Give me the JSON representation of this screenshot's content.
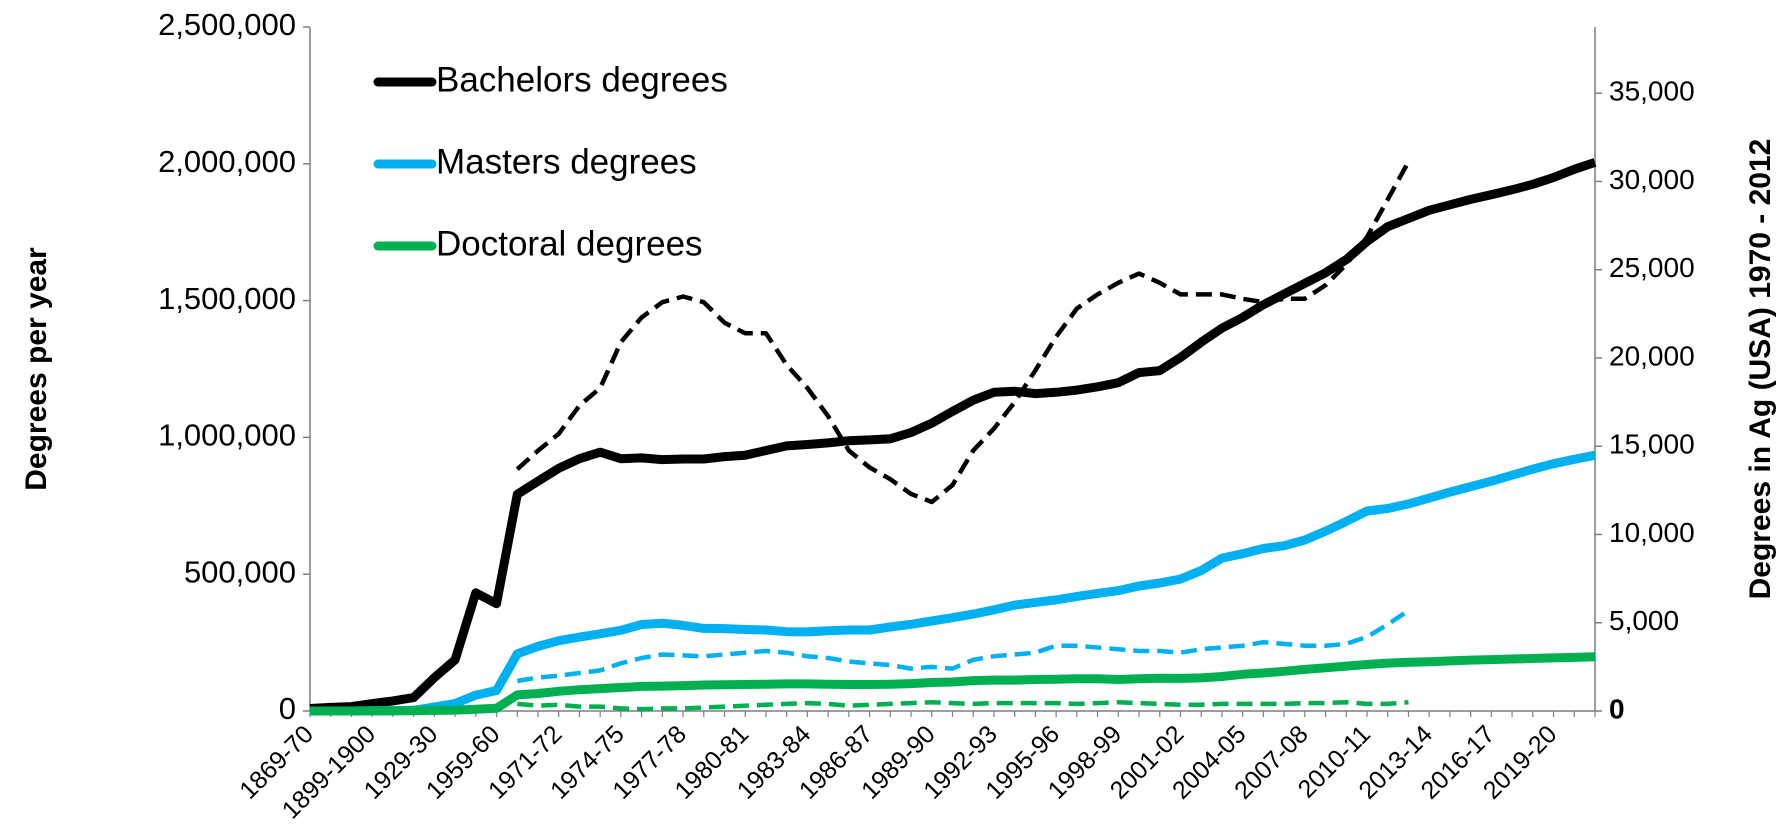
{
  "chart_data": {
    "type": "line",
    "ylabel": "Degrees per year",
    "y2label": "Degrees in Ag (USA) 1970 - 2012",
    "categories": [
      "1869-70",
      null,
      null,
      "1899-1900",
      null,
      null,
      "1929-30",
      null,
      null,
      "1959-60",
      null,
      null,
      "1971-72",
      null,
      null,
      "1974-75",
      null,
      null,
      "1977-78",
      null,
      null,
      "1980-81",
      null,
      null,
      "1983-84",
      null,
      null,
      "1986-87",
      null,
      null,
      "1989-90",
      null,
      null,
      "1992-93",
      null,
      null,
      "1995-96",
      null,
      null,
      "1998-99",
      null,
      null,
      "2001-02",
      null,
      null,
      "2004-05",
      null,
      null,
      "2007-08",
      null,
      null,
      "2010-11",
      null,
      null,
      "2013-14",
      null,
      null,
      "2016-17",
      null,
      null,
      "2019-20",
      null,
      null
    ],
    "ylim": [
      0,
      2500000
    ],
    "yticks": [
      0,
      {
        "value": 500000,
        "label": "500,000"
      },
      {
        "value": 1000000,
        "label": "1,000,000"
      },
      {
        "value": 1500000,
        "label": "1,500,000"
      },
      {
        "value": 2000000,
        "label": "2,000,000"
      },
      {
        "value": 2500000,
        "label": "2,500,000"
      }
    ],
    "y2lim": [
      0,
      38750
    ],
    "y2ticks": [
      0,
      {
        "value": 5000,
        "label": "5,000"
      },
      {
        "value": 10000,
        "label": "10,000"
      },
      {
        "value": 15000,
        "label": "15,000"
      },
      {
        "value": 20000,
        "label": "20,000"
      },
      {
        "value": 25000,
        "label": "25,000"
      },
      {
        "value": 30000,
        "label": "30,000"
      },
      {
        "value": 35000,
        "label": "35,000"
      }
    ],
    "grid": false,
    "legend": "upper left",
    "series": [
      {
        "name": "Bachelors degrees",
        "color": "#000000",
        "style": "solid",
        "values": [
          9000,
          13000,
          16000,
          27000,
          37000,
          49000,
          122000,
          187000,
          432000,
          392000,
          792000,
          840000,
          887000,
          922000,
          946000,
          922000,
          925000,
          919000,
          921000,
          921000,
          930000,
          935000,
          952000,
          969000,
          974000,
          980000,
          988000,
          991000,
          995000,
          1018000,
          1052000,
          1095000,
          1136000,
          1165000,
          1169000,
          1160000,
          1165000,
          1173000,
          1185000,
          1200000,
          1237000,
          1244000,
          1292000,
          1348000,
          1399000,
          1439000,
          1485000,
          1524000,
          1563000,
          1602000,
          1650000,
          1716000,
          1770000,
          1800000,
          1830000,
          1850000,
          1870000,
          1887000,
          1905000,
          1925000,
          1950000,
          1980000,
          2005000
        ]
      },
      {
        "name": "Masters degrees",
        "color": "#00b0f0",
        "style": "solid",
        "values": [
          0,
          0,
          0,
          1600,
          1400,
          2400,
          15000,
          27000,
          58000,
          75000,
          209000,
          236000,
          257000,
          270000,
          282000,
          295000,
          316000,
          321000,
          313000,
          302000,
          301000,
          298000,
          296000,
          290000,
          289000,
          293000,
          296000,
          296000,
          307000,
          317000,
          329000,
          341000,
          354000,
          370000,
          387000,
          397000,
          406000,
          419000,
          430000,
          440000,
          457000,
          468000,
          482000,
          513000,
          559000,
          575000,
          594000,
          604000,
          625000,
          657000,
          693000,
          731000,
          740000,
          757000,
          778000,
          800000,
          820000,
          840000,
          862000,
          884000,
          904000,
          920000,
          935000
        ]
      },
      {
        "name": "Doctoral degrees",
        "color": "#00b050",
        "style": "solid",
        "values": [
          0,
          0,
          150,
          400,
          400,
          600,
          2300,
          3300,
          6600,
          9800,
          59000,
          64000,
          72000,
          78000,
          82000,
          86000,
          90000,
          91000,
          93000,
          95000,
          96000,
          97000,
          98000,
          99000,
          99000,
          98000,
          97000,
          97000,
          98000,
          100000,
          104000,
          106000,
          111000,
          113000,
          113000,
          115000,
          116000,
          118000,
          118000,
          115000,
          118000,
          120000,
          119000,
          121000,
          126000,
          134000,
          139000,
          145000,
          152000,
          158000,
          164000,
          170000,
          175000,
          178000,
          180000,
          183000,
          186000,
          188000,
          190000,
          192000,
          194000,
          196000,
          198000
        ]
      },
      {
        "color": "#000000",
        "style": "dashed",
        "axis": "y2",
        "values": [
          null,
          null,
          null,
          null,
          null,
          null,
          null,
          null,
          null,
          null,
          13700,
          14750,
          15700,
          17300,
          18300,
          20900,
          22300,
          23160,
          23480,
          23160,
          22000,
          21400,
          21400,
          19600,
          18300,
          16700,
          14750,
          13800,
          13130,
          12300,
          11840,
          12800,
          14750,
          16000,
          17500,
          19300,
          21200,
          22800,
          23600,
          24260,
          24780,
          24260,
          23600,
          23600,
          23600,
          23350,
          23160,
          23350,
          23350,
          24130,
          25300,
          26850,
          28980,
          31120,
          null,
          null,
          null,
          null,
          null,
          null,
          null,
          null,
          null
        ]
      },
      {
        "color": "#00b0f0",
        "style": "dashed",
        "axis": "y2",
        "values": [
          null,
          null,
          null,
          null,
          null,
          null,
          null,
          null,
          null,
          null,
          1700,
          1900,
          2000,
          2150,
          2300,
          2700,
          3000,
          3200,
          3150,
          3100,
          3200,
          3300,
          3400,
          3300,
          3100,
          3000,
          2800,
          2700,
          2600,
          2400,
          2500,
          2400,
          2900,
          3100,
          3200,
          3300,
          3700,
          3700,
          3600,
          3500,
          3400,
          3400,
          3300,
          3500,
          3600,
          3700,
          3900,
          3800,
          3700,
          3700,
          3800,
          4200,
          4900,
          5700,
          null,
          null,
          null,
          null,
          null,
          null,
          null,
          null,
          null
        ]
      },
      {
        "color": "#00b050",
        "style": "dashed",
        "axis": "y2",
        "values": [
          null,
          null,
          null,
          null,
          null,
          null,
          null,
          null,
          null,
          null,
          400,
          300,
          350,
          250,
          250,
          150,
          100,
          150,
          150,
          200,
          250,
          300,
          350,
          400,
          450,
          400,
          300,
          350,
          400,
          450,
          500,
          450,
          400,
          450,
          450,
          450,
          450,
          400,
          450,
          500,
          450,
          400,
          350,
          350,
          400,
          400,
          400,
          400,
          450,
          450,
          500,
          400,
          400,
          500,
          null,
          null,
          null,
          null,
          null,
          null,
          null,
          null,
          null
        ]
      }
    ]
  }
}
